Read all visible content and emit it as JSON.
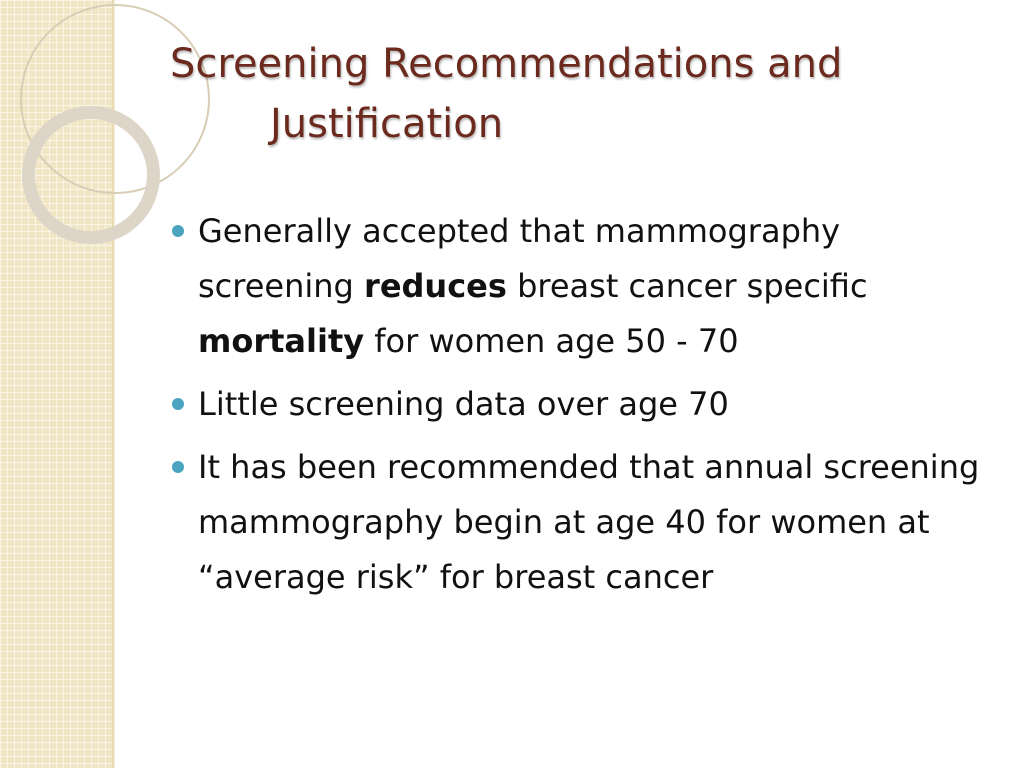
{
  "slide": {
    "title_line1": "Screening Recommendations and",
    "title_line2": "Justification",
    "accent_color": "#6b2a1d",
    "bullet_color": "#4aa3bf",
    "band_color": "#f1e6c4"
  },
  "bullets": [
    {
      "part1": "Generally accepted that mammography screening ",
      "bold1": "reduces",
      "part2": " breast cancer specific ",
      "bold2": "mortality",
      "part3": " for women age 50 - 70"
    },
    {
      "text": "Little screening data over age 70"
    },
    {
      "text": "It has been recommended that annual screening mammography begin at age 40 for women at “average risk” for breast cancer"
    }
  ]
}
